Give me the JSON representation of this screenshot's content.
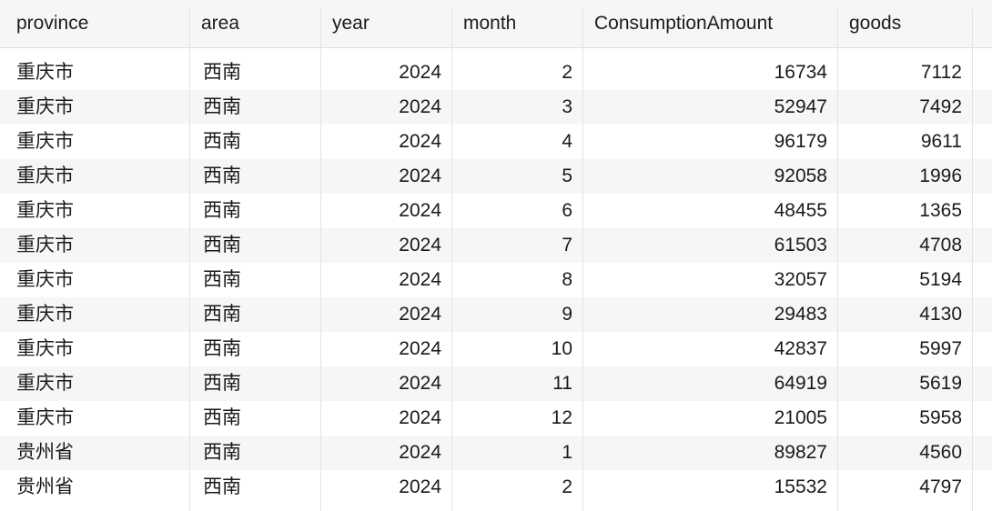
{
  "table": {
    "columns": [
      "province",
      "area",
      "year",
      "month",
      "ConsumptionAmount",
      "goods"
    ],
    "rows": [
      [
        "重庆市",
        "西南",
        "2024",
        "2",
        "16734",
        "7112"
      ],
      [
        "重庆市",
        "西南",
        "2024",
        "3",
        "52947",
        "7492"
      ],
      [
        "重庆市",
        "西南",
        "2024",
        "4",
        "96179",
        "9611"
      ],
      [
        "重庆市",
        "西南",
        "2024",
        "5",
        "92058",
        "1996"
      ],
      [
        "重庆市",
        "西南",
        "2024",
        "6",
        "48455",
        "1365"
      ],
      [
        "重庆市",
        "西南",
        "2024",
        "7",
        "61503",
        "4708"
      ],
      [
        "重庆市",
        "西南",
        "2024",
        "8",
        "32057",
        "5194"
      ],
      [
        "重庆市",
        "西南",
        "2024",
        "9",
        "29483",
        "4130"
      ],
      [
        "重庆市",
        "西南",
        "2024",
        "10",
        "42837",
        "5997"
      ],
      [
        "重庆市",
        "西南",
        "2024",
        "11",
        "64919",
        "5619"
      ],
      [
        "重庆市",
        "西南",
        "2024",
        "12",
        "21005",
        "5958"
      ],
      [
        "贵州省",
        "西南",
        "2024",
        "1",
        "89827",
        "4560"
      ],
      [
        "贵州省",
        "西南",
        "2024",
        "2",
        "15532",
        "4797"
      ]
    ]
  }
}
